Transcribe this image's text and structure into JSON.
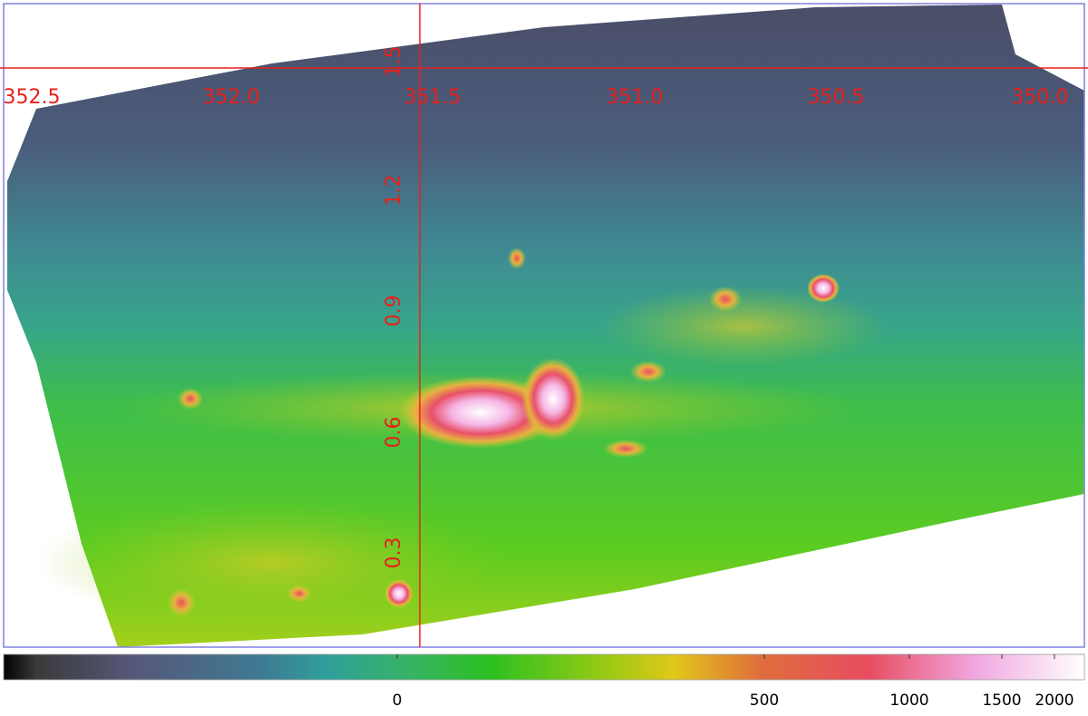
{
  "x_axis_labels": [
    "352.5",
    "352.0",
    "351.5",
    "351.0",
    "350.5",
    "350.0"
  ],
  "y_axis_labels": [
    "1.5",
    "1.2",
    "0.9",
    "0.6",
    "0.3"
  ],
  "colorbar": {
    "labels": [
      "0",
      "500",
      "1000",
      "1500",
      "2000"
    ]
  }
}
